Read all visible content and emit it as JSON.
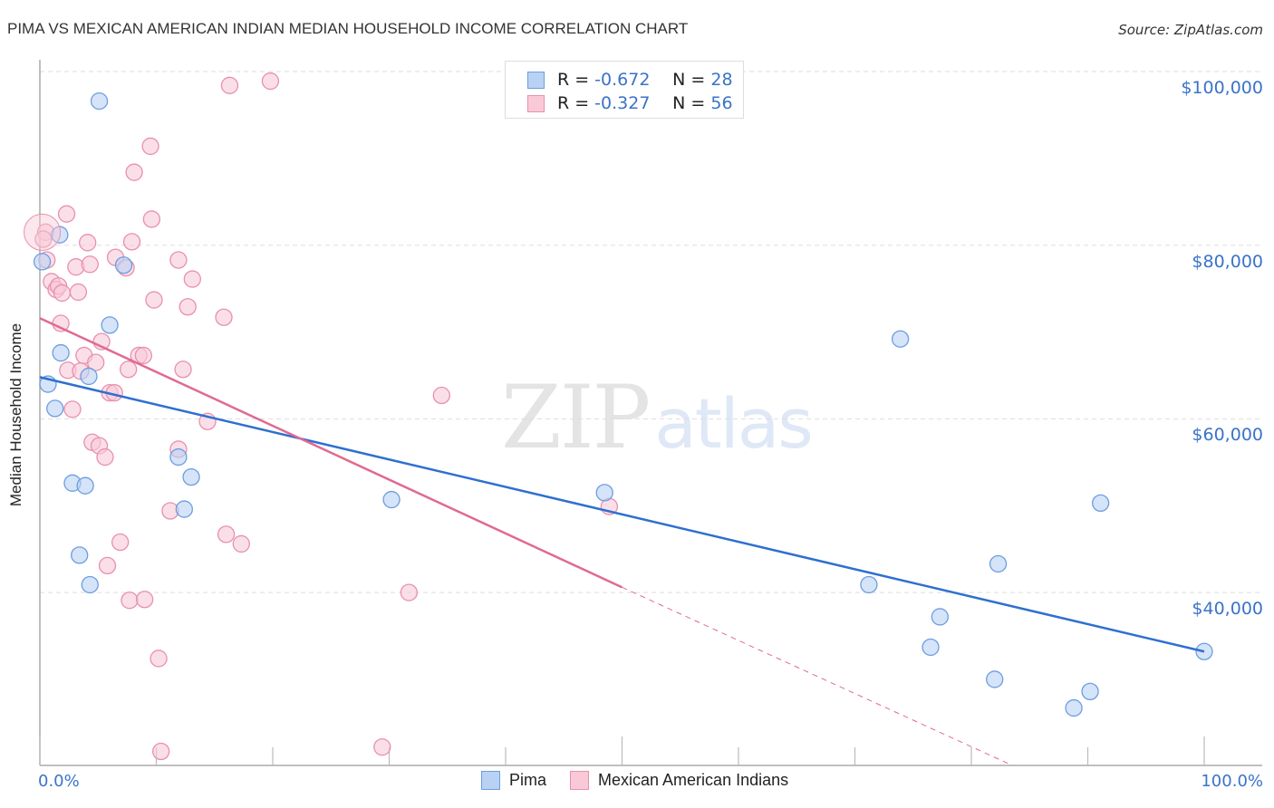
{
  "header": {
    "title": "PIMA VS MEXICAN AMERICAN INDIAN MEDIAN HOUSEHOLD INCOME CORRELATION CHART",
    "source": "Source: ZipAtlas.com"
  },
  "axes": {
    "ylabel": "Median Household Income",
    "yticks": [
      {
        "label": "$100,000",
        "value": 100000
      },
      {
        "label": "$80,000",
        "value": 80000
      },
      {
        "label": "$60,000",
        "value": 60000
      },
      {
        "label": "$40,000",
        "value": 40000
      }
    ],
    "xticks": [
      {
        "label": "0.0%",
        "value": 0
      },
      {
        "label": "100.0%",
        "value": 100
      }
    ]
  },
  "legend_stats": [
    {
      "series": "Pima",
      "r_label": "R =",
      "r_value": "-0.672",
      "n_label": "N =",
      "n_value": "28"
    },
    {
      "series": "Mexican American Indians",
      "r_label": "R =",
      "r_value": "-0.327",
      "n_label": "N =",
      "n_value": "56"
    }
  ],
  "legend": [
    {
      "name": "Pima"
    },
    {
      "name": "Mexican American Indians"
    }
  ],
  "watermark": {
    "zip": "ZIP",
    "atlas": "atlas"
  },
  "colors": {
    "pima_fill": "#b9d2f3",
    "pima_stroke": "#6d9de0",
    "pima_line": "#2f6fd0",
    "mai_fill": "#f9c9d8",
    "mai_stroke": "#e890ae",
    "mai_line": "#e06a93",
    "axis_text": "#3a73c9",
    "grid": "#dddddd"
  },
  "chart_data": {
    "type": "scatter",
    "title": "PIMA VS MEXICAN AMERICAN INDIAN MEDIAN HOUSEHOLD INCOME CORRELATION CHART",
    "xlabel": "",
    "ylabel": "Median Household Income",
    "xlim": [
      0,
      100
    ],
    "ylim": [
      20100,
      101600
    ],
    "grid": true,
    "legend_position": "bottom",
    "series": [
      {
        "name": "Pima",
        "r": -0.672,
        "n": 28,
        "trendline": {
          "x": [
            0,
            100
          ],
          "y": [
            64800,
            33200
          ]
        },
        "points": [
          {
            "x": 5.1,
            "y": 96600
          },
          {
            "x": 1.7,
            "y": 81200
          },
          {
            "x": 0.2,
            "y": 78100
          },
          {
            "x": 7.2,
            "y": 77700
          },
          {
            "x": 6.0,
            "y": 70800
          },
          {
            "x": 0.7,
            "y": 64000
          },
          {
            "x": 1.8,
            "y": 67600
          },
          {
            "x": 4.2,
            "y": 64900
          },
          {
            "x": 1.3,
            "y": 61200
          },
          {
            "x": 2.8,
            "y": 52600
          },
          {
            "x": 3.9,
            "y": 52300
          },
          {
            "x": 11.9,
            "y": 55600
          },
          {
            "x": 13.0,
            "y": 53300
          },
          {
            "x": 12.4,
            "y": 49600
          },
          {
            "x": 3.4,
            "y": 44300
          },
          {
            "x": 4.3,
            "y": 40900
          },
          {
            "x": 30.2,
            "y": 50700
          },
          {
            "x": 48.5,
            "y": 51500
          },
          {
            "x": 73.9,
            "y": 69200
          },
          {
            "x": 71.2,
            "y": 40900
          },
          {
            "x": 76.5,
            "y": 33700
          },
          {
            "x": 77.3,
            "y": 37200
          },
          {
            "x": 82.3,
            "y": 43300
          },
          {
            "x": 82.0,
            "y": 30000
          },
          {
            "x": 91.1,
            "y": 50300
          },
          {
            "x": 90.2,
            "y": 28600
          },
          {
            "x": 88.8,
            "y": 26700
          },
          {
            "x": 100.0,
            "y": 33200
          }
        ]
      },
      {
        "name": "Mexican American Indians",
        "r": -0.327,
        "n": 56,
        "trendline": {
          "x": [
            0,
            50
          ],
          "y": [
            71600,
            40600
          ],
          "dashed_extension": {
            "x": [
              50,
              83.5
            ],
            "y": [
              40600,
              20100
            ]
          }
        },
        "points": [
          {
            "x": 16.3,
            "y": 98400
          },
          {
            "x": 19.8,
            "y": 98900
          },
          {
            "x": 9.5,
            "y": 91400
          },
          {
            "x": 8.1,
            "y": 88400
          },
          {
            "x": 9.6,
            "y": 83000
          },
          {
            "x": 2.3,
            "y": 83600
          },
          {
            "x": 0.5,
            "y": 81500
          },
          {
            "x": 0.3,
            "y": 80700
          },
          {
            "x": 4.1,
            "y": 80300
          },
          {
            "x": 7.9,
            "y": 80400
          },
          {
            "x": 6.5,
            "y": 78600
          },
          {
            "x": 11.9,
            "y": 78300
          },
          {
            "x": 0.6,
            "y": 78300
          },
          {
            "x": 3.1,
            "y": 77500
          },
          {
            "x": 4.3,
            "y": 77800
          },
          {
            "x": 7.4,
            "y": 77400
          },
          {
            "x": 13.1,
            "y": 76100
          },
          {
            "x": 1.0,
            "y": 75800
          },
          {
            "x": 1.4,
            "y": 74900
          },
          {
            "x": 1.6,
            "y": 75300
          },
          {
            "x": 1.9,
            "y": 74500
          },
          {
            "x": 3.3,
            "y": 74600
          },
          {
            "x": 9.8,
            "y": 73700
          },
          {
            "x": 12.7,
            "y": 72900
          },
          {
            "x": 15.8,
            "y": 71700
          },
          {
            "x": 1.8,
            "y": 71000
          },
          {
            "x": 5.3,
            "y": 68900
          },
          {
            "x": 3.8,
            "y": 67300
          },
          {
            "x": 8.5,
            "y": 67300
          },
          {
            "x": 8.9,
            "y": 67300
          },
          {
            "x": 4.8,
            "y": 66500
          },
          {
            "x": 7.6,
            "y": 65700
          },
          {
            "x": 2.4,
            "y": 65600
          },
          {
            "x": 3.5,
            "y": 65500
          },
          {
            "x": 12.3,
            "y": 65700
          },
          {
            "x": 6.0,
            "y": 63000
          },
          {
            "x": 6.4,
            "y": 63000
          },
          {
            "x": 34.5,
            "y": 62700
          },
          {
            "x": 2.8,
            "y": 61100
          },
          {
            "x": 14.4,
            "y": 59700
          },
          {
            "x": 4.5,
            "y": 57300
          },
          {
            "x": 5.1,
            "y": 56900
          },
          {
            "x": 5.6,
            "y": 55600
          },
          {
            "x": 11.9,
            "y": 56500
          },
          {
            "x": 48.9,
            "y": 49900
          },
          {
            "x": 11.2,
            "y": 49400
          },
          {
            "x": 16.0,
            "y": 46700
          },
          {
            "x": 17.3,
            "y": 45600
          },
          {
            "x": 6.9,
            "y": 45800
          },
          {
            "x": 5.8,
            "y": 43100
          },
          {
            "x": 7.7,
            "y": 39100
          },
          {
            "x": 9.0,
            "y": 39200
          },
          {
            "x": 31.7,
            "y": 40000
          },
          {
            "x": 10.2,
            "y": 32400
          },
          {
            "x": 10.4,
            "y": 21700
          },
          {
            "x": 29.4,
            "y": 22200
          }
        ]
      }
    ]
  }
}
